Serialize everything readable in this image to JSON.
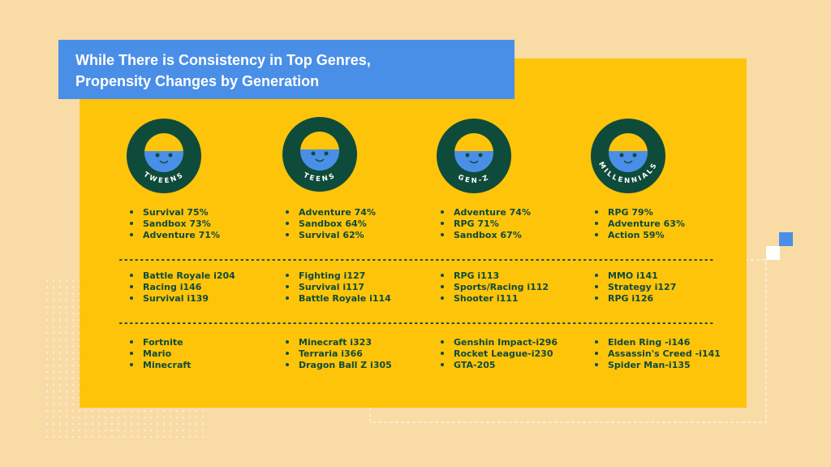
{
  "title": {
    "lines": [
      "While There is Consistency in Top Genres,",
      "Propensity Changes by Generation"
    ]
  },
  "columns": [
    {
      "badge": "TWEENS",
      "groups": [
        [
          "Survival 75%",
          "Sandbox 73%",
          "Adventure 71%"
        ],
        [
          "Battle Royale i204",
          "Racing i146",
          "Survival i139"
        ],
        [
          "Fortnite",
          "Mario",
          "Minecraft"
        ]
      ]
    },
    {
      "badge": "TEENS",
      "groups": [
        [
          "Adventure 74%",
          "Sandbox 64%",
          "Survival 62%"
        ],
        [
          "Fighting i127",
          "Survival i117",
          "Battle Royale i114"
        ],
        [
          "Minecraft i323",
          "Terraria i366",
          "Dragon Ball Z i305"
        ]
      ]
    },
    {
      "badge": "GEN-Z",
      "groups": [
        [
          "Adventure 74%",
          "RPG 71%",
          "Sandbox 67%"
        ],
        [
          "RPG i113",
          "Sports/Racing i112",
          "Shooter  i111"
        ],
        [
          "Genshin Impact-i296",
          "Rocket League-i230",
          "GTA-205"
        ]
      ]
    },
    {
      "badge": "MILLENNIALS",
      "groups": [
        [
          "RPG 79%",
          "Adventure 63%",
          "Action 59%"
        ],
        [
          "MMO i141",
          "Strategy i127",
          "RPG i126"
        ],
        [
          "Elden Ring -i146",
          "Assassin's Creed -i141",
          "Spider Man-i135"
        ]
      ]
    }
  ]
}
